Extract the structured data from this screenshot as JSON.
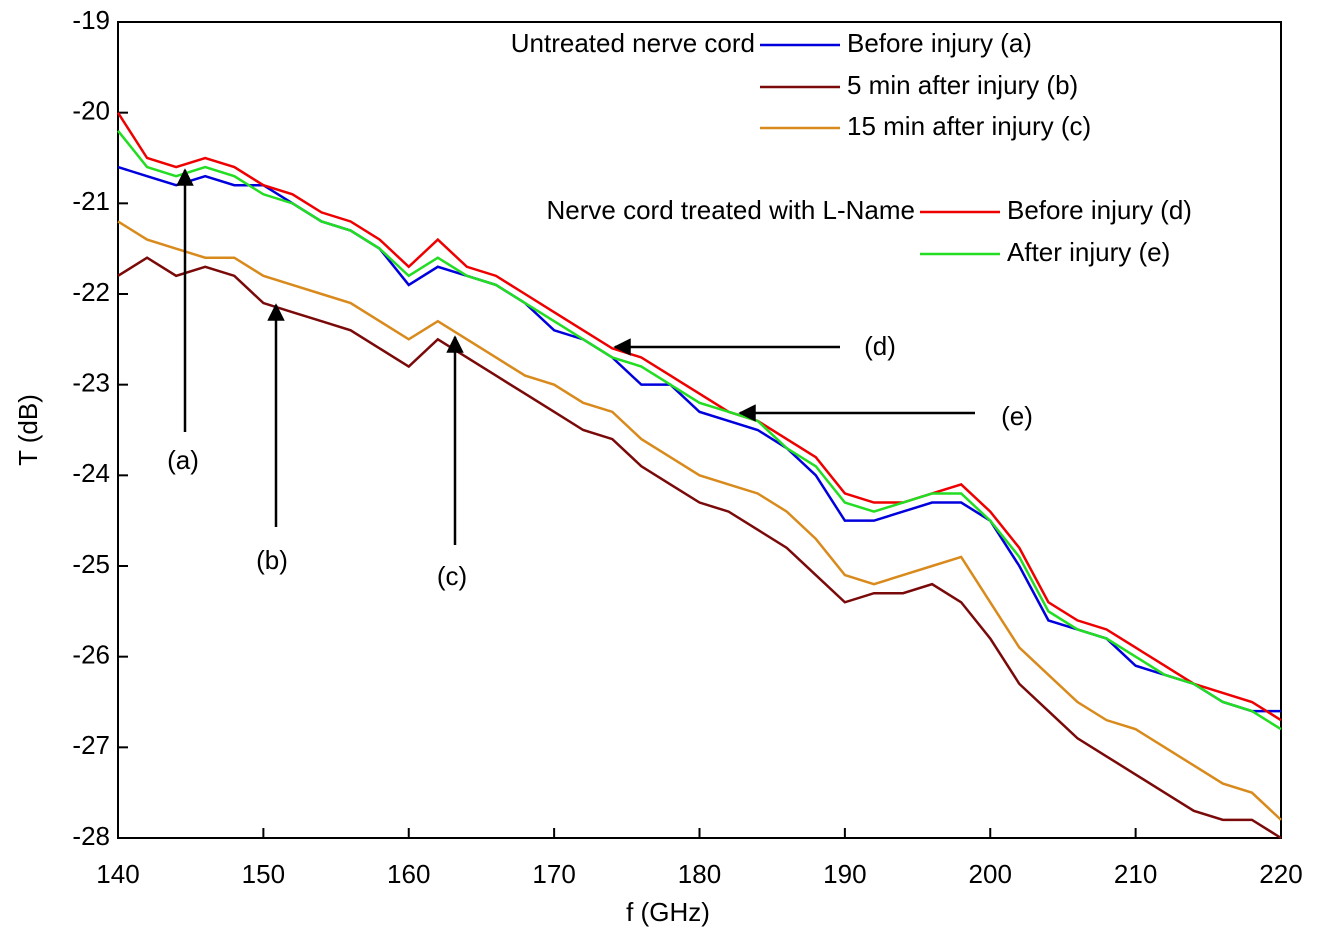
{
  "chart_data": {
    "type": "line",
    "x_label": "f (GHz)",
    "y_label": "T (dB)",
    "xlim": [
      140,
      220
    ],
    "xticks": [
      140,
      150,
      160,
      170,
      180,
      190,
      200,
      210,
      220
    ],
    "ylim": [
      -28,
      -19
    ],
    "yticks": [
      -28,
      -27,
      -26,
      -25,
      -24,
      -23,
      -22,
      -21,
      -20,
      -19
    ],
    "x": [
      140,
      142,
      144,
      146,
      148,
      150,
      152,
      154,
      156,
      158,
      160,
      162,
      164,
      166,
      168,
      170,
      172,
      174,
      176,
      178,
      180,
      182,
      184,
      186,
      188,
      190,
      192,
      194,
      196,
      198,
      200,
      202,
      204,
      206,
      208,
      210,
      212,
      214,
      216,
      218,
      220
    ],
    "legend_groups": [
      "Untreated nerve cord",
      "Nerve cord treated with L-Name"
    ],
    "series": [
      {
        "name": "Before injury (a)",
        "color": "#0000dd",
        "values": [
          -20.6,
          -20.7,
          -20.8,
          -20.7,
          -20.8,
          -20.8,
          -21.0,
          -21.2,
          -21.3,
          -21.5,
          -21.9,
          -21.7,
          -21.8,
          -21.9,
          -22.1,
          -22.4,
          -22.5,
          -22.7,
          -23.0,
          -23.0,
          -23.3,
          -23.4,
          -23.5,
          -23.7,
          -24.0,
          -24.5,
          -24.5,
          -24.4,
          -24.3,
          -24.3,
          -24.5,
          -25.0,
          -25.6,
          -25.7,
          -25.8,
          -26.1,
          -26.2,
          -26.3,
          -26.5,
          -26.6,
          -26.6
        ]
      },
      {
        "name": "5 min after injury (b)",
        "color": "#7a0a0a",
        "values": [
          -21.8,
          -21.6,
          -21.8,
          -21.7,
          -21.8,
          -22.1,
          -22.2,
          -22.3,
          -22.4,
          -22.6,
          -22.8,
          -22.5,
          -22.7,
          -22.9,
          -23.1,
          -23.3,
          -23.5,
          -23.6,
          -23.9,
          -24.1,
          -24.3,
          -24.4,
          -24.6,
          -24.8,
          -25.1,
          -25.4,
          -25.3,
          -25.3,
          -25.2,
          -25.4,
          -25.8,
          -26.3,
          -26.6,
          -26.9,
          -27.1,
          -27.3,
          -27.5,
          -27.7,
          -27.8,
          -27.8,
          -28.0
        ]
      },
      {
        "name": "15 min after injury (c)",
        "color": "#d98a1c",
        "values": [
          -21.2,
          -21.4,
          -21.5,
          -21.6,
          -21.6,
          -21.8,
          -21.9,
          -22.0,
          -22.1,
          -22.3,
          -22.5,
          -22.3,
          -22.5,
          -22.7,
          -22.9,
          -23.0,
          -23.2,
          -23.3,
          -23.6,
          -23.8,
          -24.0,
          -24.1,
          -24.2,
          -24.4,
          -24.7,
          -25.1,
          -25.2,
          -25.1,
          -25.0,
          -24.9,
          -25.4,
          -25.9,
          -26.2,
          -26.5,
          -26.7,
          -26.8,
          -27.0,
          -27.2,
          -27.4,
          -27.5,
          -27.8
        ]
      },
      {
        "name": "Before injury (d)",
        "color": "#ee0000",
        "values": [
          -20.0,
          -20.5,
          -20.6,
          -20.5,
          -20.6,
          -20.8,
          -20.9,
          -21.1,
          -21.2,
          -21.4,
          -21.7,
          -21.4,
          -21.7,
          -21.8,
          -22.0,
          -22.2,
          -22.4,
          -22.6,
          -22.7,
          -22.9,
          -23.1,
          -23.3,
          -23.4,
          -23.6,
          -23.8,
          -24.2,
          -24.3,
          -24.3,
          -24.2,
          -24.1,
          -24.4,
          -24.8,
          -25.4,
          -25.6,
          -25.7,
          -25.9,
          -26.1,
          -26.3,
          -26.4,
          -26.5,
          -26.7
        ]
      },
      {
        "name": "After injury (e)",
        "color": "#22dd22",
        "values": [
          -20.2,
          -20.6,
          -20.7,
          -20.6,
          -20.7,
          -20.9,
          -21.0,
          -21.2,
          -21.3,
          -21.5,
          -21.8,
          -21.6,
          -21.8,
          -21.9,
          -22.1,
          -22.3,
          -22.5,
          -22.7,
          -22.8,
          -23.0,
          -23.2,
          -23.3,
          -23.4,
          -23.7,
          -23.9,
          -24.3,
          -24.4,
          -24.3,
          -24.2,
          -24.2,
          -24.5,
          -24.9,
          -25.5,
          -25.7,
          -25.8,
          -26.0,
          -26.2,
          -26.3,
          -26.5,
          -26.6,
          -26.8
        ]
      }
    ],
    "annotations": [
      "(a)",
      "(b)",
      "(c)",
      "(d)",
      "(e)"
    ]
  }
}
